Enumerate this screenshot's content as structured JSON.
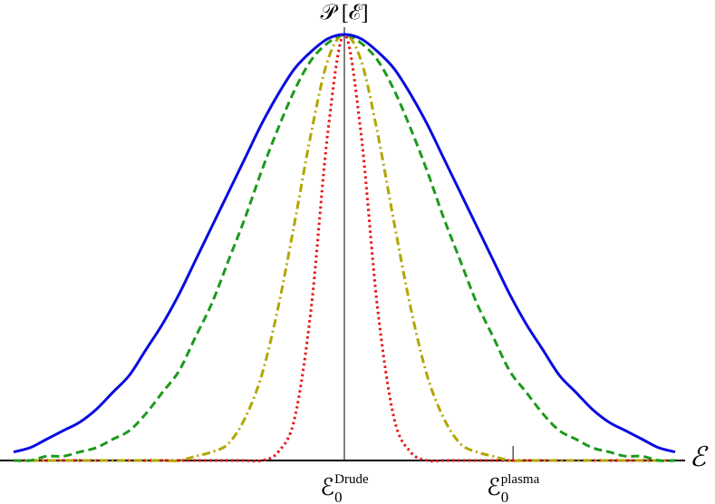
{
  "chart_data": {
    "type": "line",
    "y_axis_label": "𝒫 [ℰ]",
    "x_axis_label": "ℰ",
    "x": [
      -1,
      -0.95,
      -0.9,
      -0.85,
      -0.8,
      -0.75,
      -0.7,
      -0.65,
      -0.6,
      -0.55,
      -0.5,
      -0.45,
      -0.4,
      -0.35,
      -0.3,
      -0.25,
      -0.2,
      -0.15,
      -0.1,
      -0.05,
      0,
      0.05,
      0.1,
      0.15,
      0.2,
      0.25,
      0.3,
      0.35,
      0.4,
      0.45,
      0.5,
      0.55,
      0.6,
      0.65,
      0.7,
      0.75,
      0.8,
      0.85,
      0.9,
      0.95,
      1
    ],
    "xlim": [
      -1,
      1
    ],
    "ylim": [
      0,
      1
    ],
    "xticks": [
      {
        "value": 0,
        "label": "ℰ",
        "subscript": "0",
        "superscript": "Drude"
      },
      {
        "value": 0.51,
        "label": "ℰ",
        "subscript": "0",
        "superscript": "plasma"
      }
    ],
    "series": [
      {
        "color": "#0b0be0",
        "dash": "solid",
        "values": [
          0.02,
          0.03,
          0.05,
          0.07,
          0.09,
          0.12,
          0.16,
          0.2,
          0.26,
          0.32,
          0.39,
          0.47,
          0.55,
          0.63,
          0.71,
          0.79,
          0.86,
          0.92,
          0.96,
          0.99,
          1,
          0.99,
          0.96,
          0.92,
          0.86,
          0.79,
          0.71,
          0.63,
          0.55,
          0.47,
          0.39,
          0.32,
          0.26,
          0.2,
          0.16,
          0.12,
          0.09,
          0.07,
          0.05,
          0.03,
          0.02
        ]
      },
      {
        "color": "#1c9a1c",
        "dash": "dashed",
        "values": [
          0,
          0,
          0.01,
          0.01,
          0.02,
          0.03,
          0.05,
          0.07,
          0.11,
          0.16,
          0.21,
          0.29,
          0.37,
          0.47,
          0.57,
          0.68,
          0.78,
          0.87,
          0.94,
          0.98,
          1,
          0.98,
          0.94,
          0.87,
          0.78,
          0.68,
          0.57,
          0.47,
          0.37,
          0.29,
          0.21,
          0.16,
          0.11,
          0.07,
          0.05,
          0.03,
          0.02,
          0.01,
          0.01,
          0,
          0
        ]
      },
      {
        "color": "#b3a600",
        "dash": "dashdot",
        "values": [
          0,
          0,
          0,
          0,
          0,
          0,
          0,
          0,
          0,
          0,
          0,
          0.01,
          0.02,
          0.04,
          0.1,
          0.2,
          0.36,
          0.56,
          0.77,
          0.94,
          1,
          0.94,
          0.77,
          0.56,
          0.36,
          0.2,
          0.1,
          0.04,
          0.02,
          0.01,
          0,
          0,
          0,
          0,
          0,
          0,
          0,
          0,
          0,
          0,
          0
        ]
      },
      {
        "color": "#e81212",
        "dash": "dotted",
        "values": [
          0,
          0,
          0,
          0,
          0,
          0,
          0,
          0,
          0,
          0,
          0,
          0,
          0,
          0,
          0,
          0,
          0.02,
          0.1,
          0.36,
          0.77,
          1,
          0.77,
          0.36,
          0.1,
          0.02,
          0,
          0,
          0,
          0,
          0,
          0,
          0,
          0,
          0,
          0,
          0,
          0,
          0,
          0,
          0,
          0
        ]
      }
    ]
  }
}
